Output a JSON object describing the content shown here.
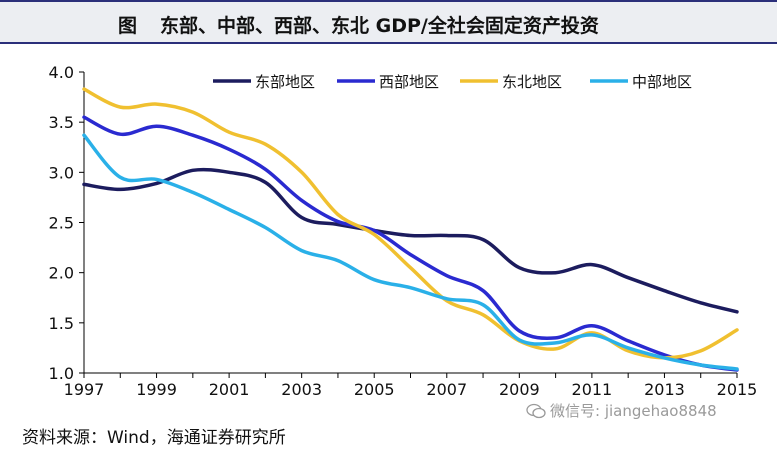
{
  "header": {
    "label": "图",
    "title": "东部、中部、西部、东北 GDP/全社会固定资产投资"
  },
  "footer": {
    "source": "资料来源：Wind，海通证券研究所",
    "watermark": "微信号: jiangehao8848"
  },
  "chart_data": {
    "type": "line",
    "title": "东部、中部、西部、东北 GDP/全社会固定资产投资",
    "xlabel": "",
    "ylabel": "",
    "x": [
      1997,
      1998,
      1999,
      2000,
      2001,
      2002,
      2003,
      2004,
      2005,
      2006,
      2007,
      2008,
      2009,
      2010,
      2011,
      2012,
      2013,
      2014,
      2015
    ],
    "xticks": [
      1997,
      1999,
      2001,
      2003,
      2005,
      2007,
      2009,
      2011,
      2013,
      2015
    ],
    "yticks": [
      "1.0",
      "1.5",
      "2.0",
      "2.5",
      "3.0",
      "3.5",
      "4.0"
    ],
    "ylim": [
      1.0,
      4.0
    ],
    "xlim": [
      1997,
      2015
    ],
    "legend_position": "top",
    "grid": false,
    "series": [
      {
        "name": "东部地区",
        "color": "#1c1c5e",
        "values": [
          2.88,
          2.83,
          2.89,
          3.02,
          3.0,
          2.9,
          2.55,
          2.48,
          2.42,
          2.37,
          2.37,
          2.33,
          2.05,
          2.0,
          2.08,
          1.95,
          1.82,
          1.7,
          1.61
        ]
      },
      {
        "name": "西部地区",
        "color": "#2a2ad0",
        "values": [
          3.55,
          3.38,
          3.46,
          3.37,
          3.23,
          3.03,
          2.72,
          2.51,
          2.42,
          2.18,
          1.97,
          1.82,
          1.42,
          1.35,
          1.47,
          1.32,
          1.18,
          1.08,
          1.03
        ]
      },
      {
        "name": "东北地区",
        "color": "#f0c030",
        "values": [
          3.83,
          3.65,
          3.68,
          3.6,
          3.4,
          3.28,
          3.0,
          2.58,
          2.38,
          2.05,
          1.72,
          1.58,
          1.32,
          1.24,
          1.4,
          1.22,
          1.15,
          1.22,
          1.43
        ]
      },
      {
        "name": "中部地区",
        "color": "#2ab0e8",
        "values": [
          3.37,
          2.95,
          2.93,
          2.8,
          2.63,
          2.45,
          2.22,
          2.12,
          1.93,
          1.85,
          1.74,
          1.68,
          1.33,
          1.3,
          1.38,
          1.25,
          1.15,
          1.08,
          1.04
        ]
      }
    ]
  }
}
